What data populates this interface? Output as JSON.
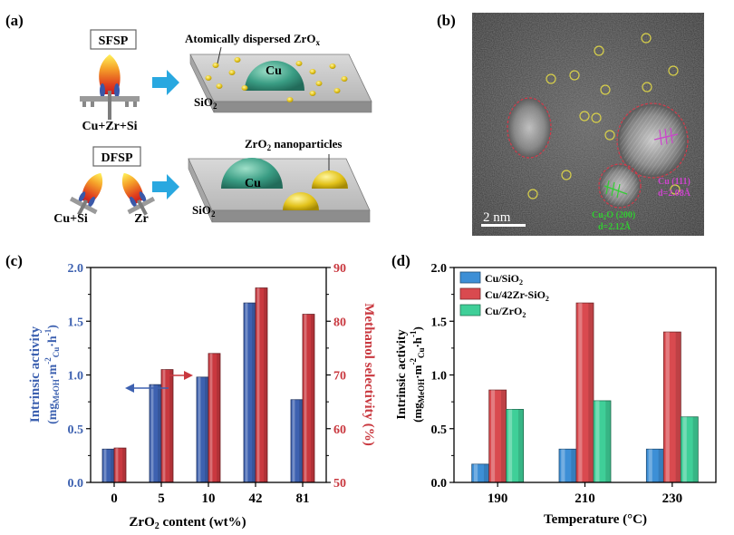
{
  "panels": {
    "a": {
      "label": "(a)",
      "sfsp": {
        "badge": "SFSP",
        "precursor": "Cu+Zr+Si",
        "annotation": "Atomically dispersed ZrO",
        "annotation_sub": "x",
        "particle": "Cu",
        "substrate": "SiO",
        "substrate_sub": "2"
      },
      "dfsp": {
        "badge": "DFSP",
        "precursor_left": "Cu+Si",
        "precursor_right": "Zr",
        "annotation": "ZrO",
        "annotation_sub": "2",
        "annotation_rest": " nanoparticles",
        "particle": "Cu",
        "substrate": "SiO",
        "substrate_sub": "2"
      }
    },
    "b": {
      "label": "(b)",
      "scale_bar": "2  nm",
      "lattice1_a": "Cu (111)",
      "lattice1_b": "d=2.08Å",
      "lattice2_a": "Cu",
      "lattice2_sub": "2",
      "lattice2_b": "O (200)",
      "lattice2_c": "d=2.12Å",
      "colors": {
        "circle": "#d8d04a",
        "boundary": "#d23a4a",
        "cu111": "#cc44cc",
        "cu2o": "#33cc33"
      }
    }
  },
  "chart_data": [
    {
      "panel": "(c)",
      "type": "bar",
      "categories": [
        "0",
        "5",
        "10",
        "42",
        "81"
      ],
      "xlabel": {
        "pre": "ZrO",
        "sub": "2",
        "post": " content (wt%)"
      },
      "ylabel_left": {
        "l1": "Intrinsic activity",
        "l2_pre": "(mg",
        "l2_sub1": "MeOH",
        "l2_mid": "·m",
        "l2_sup": "-2",
        "l2_sub2": "Cu",
        "l2_post": "·h",
        "l2_sup2": "-1",
        "l2_end": ")"
      },
      "ylabel_right": "Methanol selectivity (%)",
      "ylim_left": [
        0,
        2.0
      ],
      "yticks_left": [
        "0.0",
        "0.5",
        "1.0",
        "1.5",
        "2.0"
      ],
      "ylim_right": [
        50,
        90
      ],
      "yticks_right": [
        "50",
        "60",
        "70",
        "80",
        "90"
      ],
      "series": [
        {
          "axis": "left",
          "color": "#3d61b0",
          "values": [
            0.31,
            0.91,
            0.98,
            1.67,
            0.77
          ]
        },
        {
          "axis": "right",
          "color": "#c9383f",
          "values": [
            56.4,
            71.0,
            74.0,
            86.2,
            81.3
          ]
        }
      ]
    },
    {
      "panel": "(d)",
      "type": "bar",
      "categories": [
        "190",
        "210",
        "230"
      ],
      "xlabel": "Temperature (°C)",
      "ylabel": {
        "l1": "Intrinsic activity",
        "l2_pre": "(mg",
        "l2_sub1": "MeOH",
        "l2_mid": "·m",
        "l2_sup": "-2",
        "l2_sub2": "Cu",
        "l2_post": "·h",
        "l2_sup2": "-1",
        "l2_end": ")"
      },
      "ylim": [
        0,
        2.0
      ],
      "yticks": [
        "0.0",
        "0.5",
        "1.0",
        "1.5",
        "2.0"
      ],
      "legend_position": "top-left",
      "series": [
        {
          "name": "Cu/SiO",
          "name_sub": "2",
          "color": "#3d8fd6",
          "values": [
            0.17,
            0.31,
            0.31
          ]
        },
        {
          "name": "Cu/42Zr-SiO",
          "name_sub": "2",
          "color": "#d94a4f",
          "values": [
            0.86,
            1.67,
            1.4
          ]
        },
        {
          "name": "Cu/ZrO",
          "name_sub": "2",
          "color": "#3fcf98",
          "values": [
            0.68,
            0.76,
            0.61
          ]
        }
      ]
    }
  ]
}
